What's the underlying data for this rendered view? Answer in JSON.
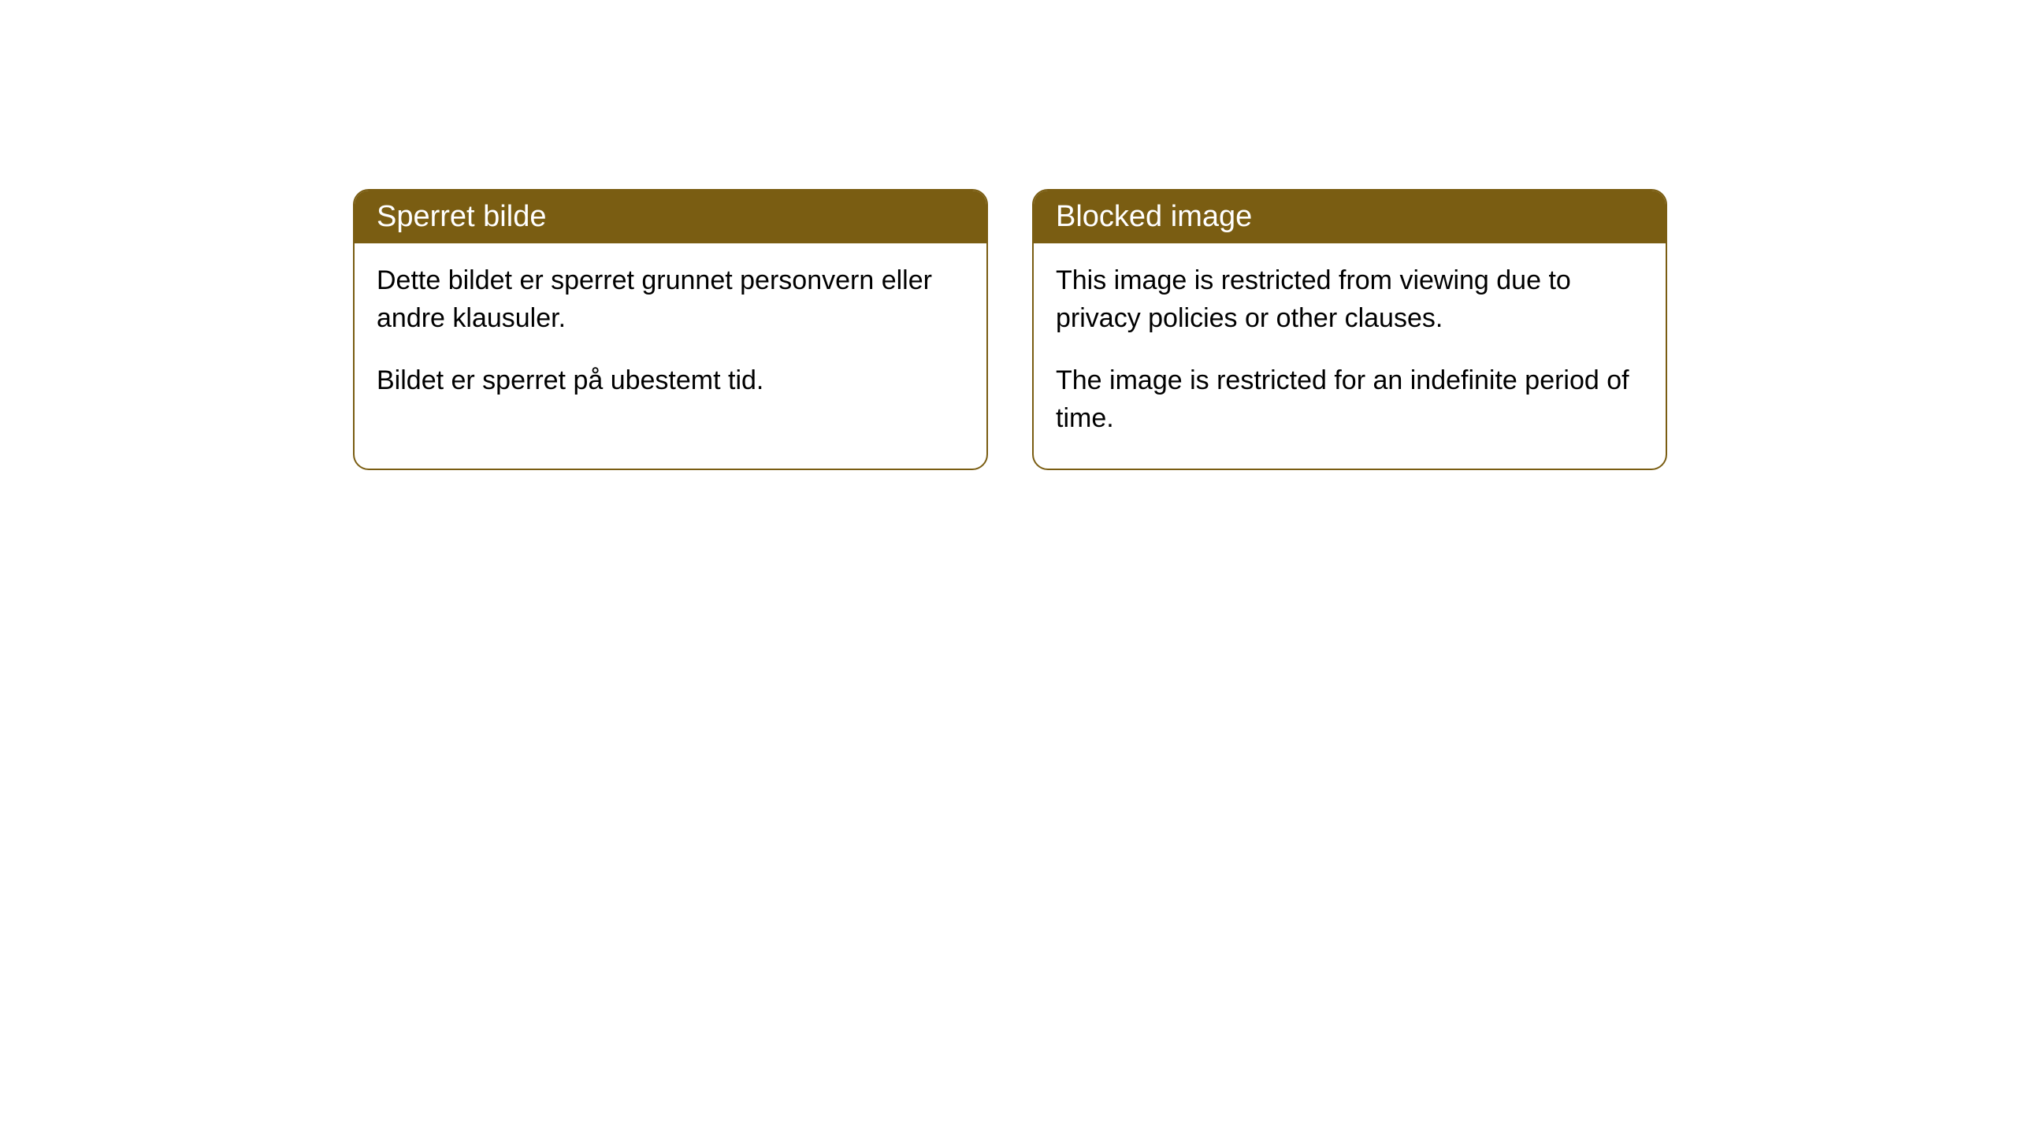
{
  "cards": [
    {
      "title": "Sperret bilde",
      "paragraph1": "Dette bildet er sperret grunnet personvern eller andre klausuler.",
      "paragraph2": "Bildet er sperret på ubestemt tid."
    },
    {
      "title": "Blocked image",
      "paragraph1": "This image is restricted from viewing due to privacy policies or other clauses.",
      "paragraph2": "The image is restricted for an indefinite period of time."
    }
  ],
  "styling": {
    "header_background_color": "#7a5d12",
    "header_text_color": "#ffffff",
    "card_border_color": "#7a5d12",
    "card_background_color": "#ffffff",
    "body_text_color": "#000000",
    "page_background_color": "#ffffff",
    "border_radius": 20,
    "header_fontsize": 38,
    "body_fontsize": 34
  }
}
